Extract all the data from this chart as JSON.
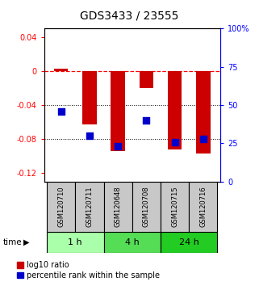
{
  "title": "GDS3433 / 23555",
  "samples": [
    "GSM120710",
    "GSM120711",
    "GSM120648",
    "GSM120708",
    "GSM120715",
    "GSM120716"
  ],
  "groups": [
    {
      "label": "1 h",
      "indices": [
        0,
        1
      ],
      "color": "#aaffaa"
    },
    {
      "label": "4 h",
      "indices": [
        2,
        3
      ],
      "color": "#55dd55"
    },
    {
      "label": "24 h",
      "indices": [
        4,
        5
      ],
      "color": "#22cc22"
    }
  ],
  "log10_ratio": [
    0.003,
    -0.063,
    -0.094,
    -0.02,
    -0.092,
    -0.097
  ],
  "percentile_rank": [
    0.46,
    0.3,
    0.23,
    0.4,
    0.26,
    0.28
  ],
  "ylim_left": [
    -0.13,
    0.05
  ],
  "ylim_right": [
    0.0,
    1.0
  ],
  "yticks_left": [
    0.04,
    0.0,
    -0.04,
    -0.08,
    -0.12
  ],
  "ytick_labels_left": [
    "0.04",
    "0",
    "-0.04",
    "-0.08",
    "-0.12"
  ],
  "yticks_right": [
    1.0,
    0.75,
    0.5,
    0.25,
    0.0
  ],
  "ytick_labels_right": [
    "100%",
    "75",
    "50",
    "25",
    "0"
  ],
  "bar_color": "#cc0000",
  "dot_color": "#0000cc",
  "ref_line_y": 0.0,
  "dotted_lines": [
    -0.04,
    -0.08
  ],
  "bar_width": 0.5,
  "dot_size": 28,
  "title_fontsize": 10,
  "tick_fontsize": 7,
  "sample_fontsize": 6,
  "group_fontsize": 8,
  "legend_fontsize": 7
}
